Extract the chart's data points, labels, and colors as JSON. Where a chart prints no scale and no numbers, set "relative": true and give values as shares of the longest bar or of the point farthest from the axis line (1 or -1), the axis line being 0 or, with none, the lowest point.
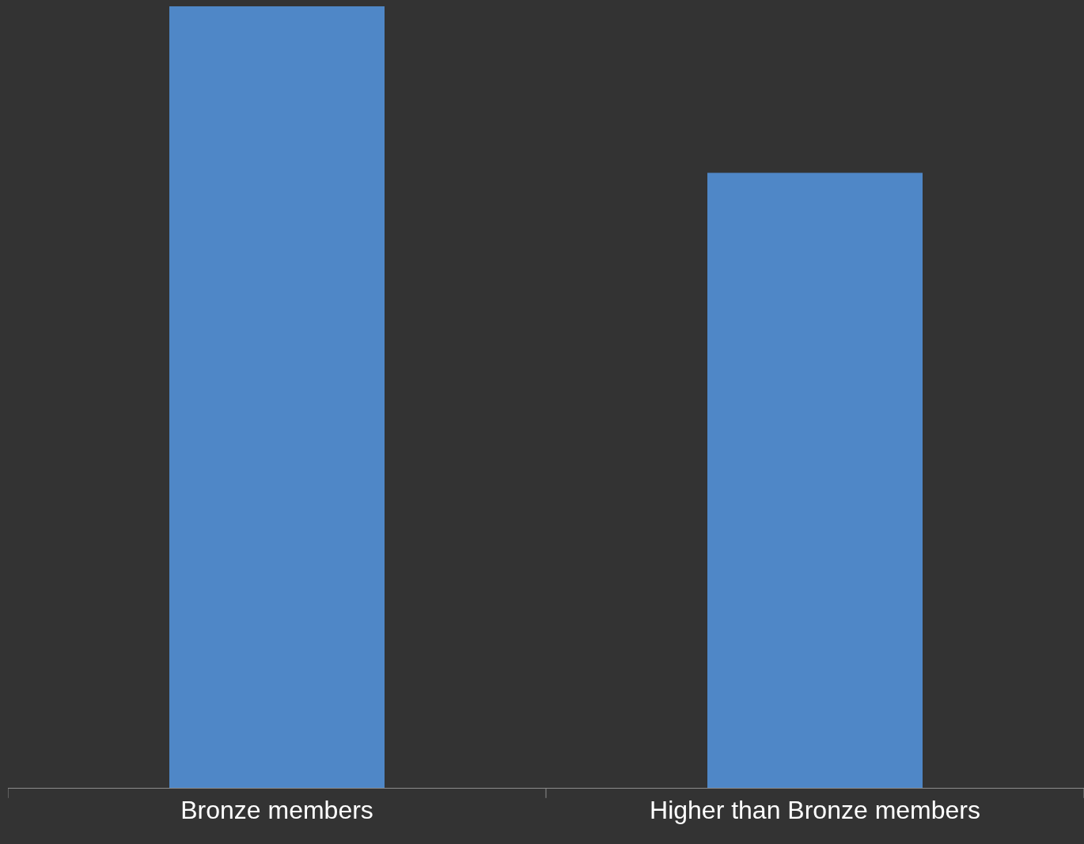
{
  "chart_data": {
    "type": "bar",
    "categories": [
      "Bronze members",
      "Higher than Bronze members"
    ],
    "values": [
      1,
      0.787
    ],
    "color": "#4f87c7",
    "relative": true
  }
}
